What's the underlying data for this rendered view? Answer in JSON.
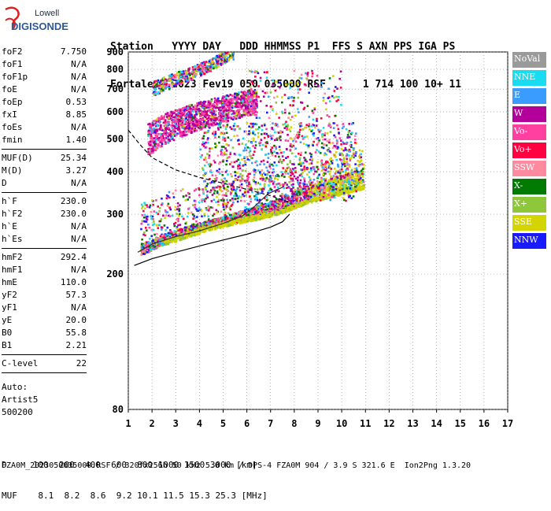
{
  "logo": {
    "top": "Lowell",
    "bottom": "DIGISONDE"
  },
  "header": {
    "labels": "Station   YYYY DAY   DDD HHMMSS P1  FFS S AXN PPS IGA PS",
    "values": "Fortaleza 2023 Fev19 050 035000 RSF      1 714 100 10+ 11"
  },
  "params": {
    "g1": [
      [
        "foF2",
        "7.750"
      ],
      [
        "foF1",
        "N/A"
      ],
      [
        "foF1p",
        "N/A"
      ],
      [
        "foE",
        "N/A"
      ],
      [
        "foEp",
        "0.53"
      ],
      [
        "fxI",
        "8.85"
      ],
      [
        "foEs",
        "N/A"
      ],
      [
        "fmin",
        "1.40"
      ]
    ],
    "g2": [
      [
        "MUF(D)",
        "25.34"
      ],
      [
        "M(D)",
        "3.27"
      ],
      [
        "D",
        "N/A"
      ]
    ],
    "g3": [
      [
        "h`F",
        "230.0"
      ],
      [
        "h`F2",
        "230.0"
      ],
      [
        "h`E",
        "N/A"
      ],
      [
        "h`Es",
        "N/A"
      ]
    ],
    "g4": [
      [
        "hmF2",
        "292.4"
      ],
      [
        "hmF1",
        "N/A"
      ],
      [
        "hmE",
        "110.0"
      ],
      [
        "yF2",
        "57.3"
      ],
      [
        "yF1",
        "N/A"
      ],
      [
        "yE",
        "20.0"
      ],
      [
        "B0",
        "55.8"
      ],
      [
        "B1",
        "2.21"
      ]
    ],
    "g5": [
      [
        "C-level",
        "22"
      ]
    ]
  },
  "auto": {
    "l1": "Auto:",
    "l2": "Artist5",
    "l3": "500200"
  },
  "legend": [
    {
      "label": "NoVal",
      "color": "#9a9a9a"
    },
    {
      "label": "NNE",
      "color": "#19dcf0"
    },
    {
      "label": "E",
      "color": "#3b9cff"
    },
    {
      "label": "W",
      "color": "#b4009a"
    },
    {
      "label": "Vo-",
      "color": "#ff40a0"
    },
    {
      "label": "Vo+",
      "color": "#ff0040"
    },
    {
      "label": "SSW",
      "color": "#ff8aa0"
    },
    {
      "label": "X-",
      "color": "#007a00"
    },
    {
      "label": "X+",
      "color": "#8ec83a"
    },
    {
      "label": "SSE",
      "color": "#d4d400"
    },
    {
      "label": "NNW",
      "color": "#1a1aff"
    }
  ],
  "footer": {
    "d_line": "D     100  200  400  600  800 1000 1500 3000 [km]",
    "muf_line": "MUF    8.1  8.2  8.6  9.2 10.1 11.5 15.3 25.3 [MHz]",
    "file_line": "FZA0M_2023050035000.RSF / 320fx256h 50 kHz 5.0 km / DPS-4 FZA0M 904 / 3.9 S 321.6 E  Ion2Png 1.3.20"
  },
  "chart_data": {
    "type": "scatter",
    "title": "",
    "xlabel": "",
    "ylabel": "",
    "xlim": [
      1,
      17
    ],
    "ylim": [
      80,
      900
    ],
    "y_scale": "log",
    "x_ticks": [
      1,
      2,
      3,
      4,
      5,
      6,
      7,
      8,
      9,
      10,
      11,
      12,
      13,
      14,
      15,
      16,
      17
    ],
    "y_ticks": [
      80,
      200,
      300,
      400,
      500,
      600,
      700,
      800,
      900
    ],
    "grid": true,
    "traces": {
      "trace_1": {
        "x": [
          1.5,
          2.5,
          3.5,
          4.5,
          5.5,
          6.5,
          7.5,
          8.5,
          9.5,
          10.5,
          10.9
        ],
        "y": [
          240,
          258,
          272,
          285,
          296,
          305,
          318,
          338,
          352,
          365,
          372
        ]
      },
      "trace_2": {
        "x": [
          1.7,
          2.5,
          3.5,
          4.5,
          5.5,
          6.0
        ],
        "y": [
          465,
          510,
          545,
          575,
          600,
          615
        ]
      },
      "trace_3": {
        "x": [
          2.0,
          2.5,
          3.5,
          4.5,
          5.3
        ],
        "y": [
          690,
          715,
          760,
          820,
          880
        ]
      },
      "profile_dashed": {
        "x": [
          1.0,
          1.5,
          2.0,
          3.0,
          4.0,
          5.0,
          6.0,
          7.0,
          7.8
        ],
        "y": [
          530,
          480,
          440,
          405,
          385,
          370,
          355,
          340,
          325
        ]
      },
      "profile_solid": {
        "x": [
          1.25,
          2.0,
          3.0,
          4.0,
          5.0,
          6.0,
          7.0,
          7.5,
          7.8
        ],
        "y": [
          212,
          222,
          232,
          242,
          252,
          262,
          275,
          285,
          300
        ]
      },
      "profile_model": {
        "x": [
          1.4,
          2.0,
          3.0,
          4.0,
          5.0,
          5.8,
          6.3,
          6.9,
          7.5
        ],
        "y": [
          232,
          245,
          258,
          268,
          282,
          296,
          315,
          345,
          360
        ]
      }
    }
  }
}
